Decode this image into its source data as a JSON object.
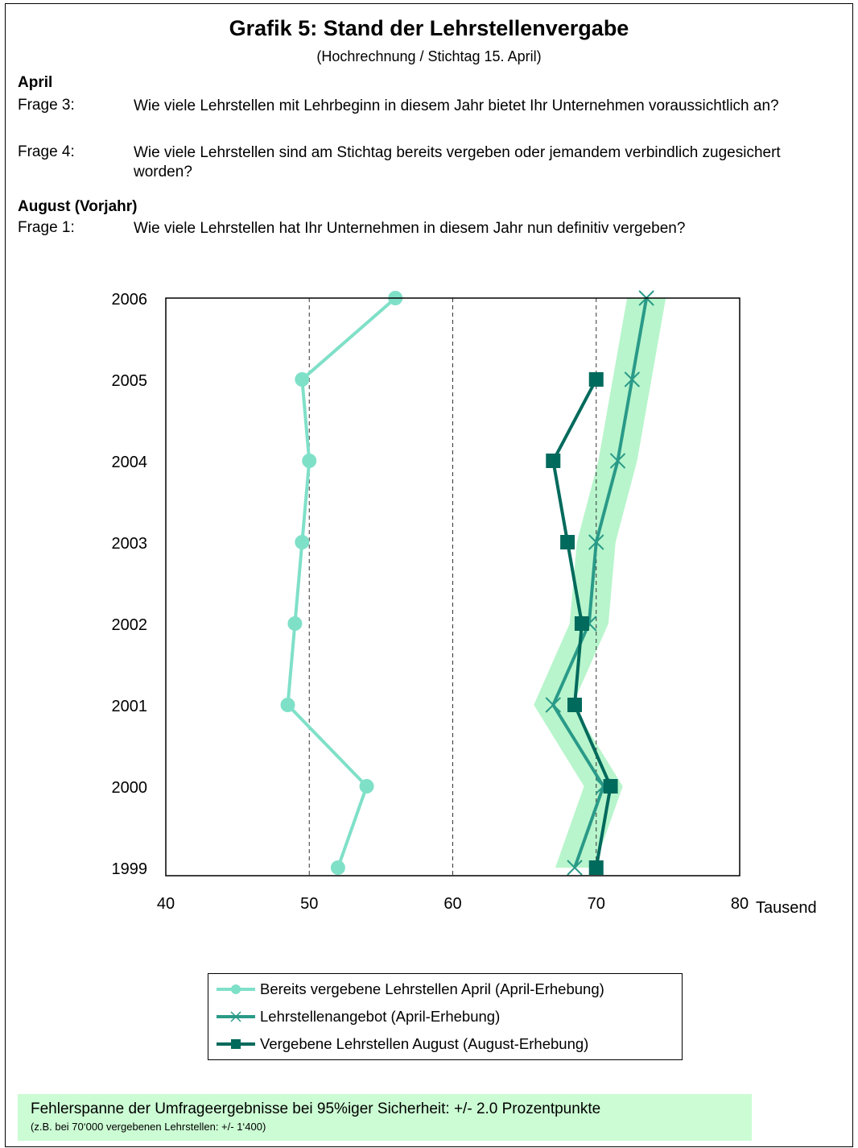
{
  "title": "Grafik 5: Stand der Lehrstellenvergabe",
  "subtitle": "(Hochrechnung / Stichtag 15. April)",
  "questions": {
    "april_header": "April",
    "q3_label": "Frage 3:",
    "q3_text": "Wie viele Lehrstellen mit Lehrbeginn in diesem Jahr bietet Ihr Unternehmen voraussichtlich an?",
    "q4_label": "Frage 4:",
    "q4_text": "Wie viele Lehrstellen sind am Stichtag bereits vergeben oder jemandem verbindlich zugesichert worden?",
    "august_header": "August (Vorjahr)",
    "q1_label": "Frage 1:",
    "q1_text": "Wie viele Lehrstellen hat Ihr Unternehmen in diesem Jahr nun definitiv vergeben?"
  },
  "chart_data": {
    "type": "line",
    "orientation": "horizontal-values",
    "xlabel": "Tausend",
    "xlim": [
      40,
      80
    ],
    "xticks": [
      40,
      50,
      60,
      70,
      80
    ],
    "years": [
      "1999",
      "2000",
      "2001",
      "2002",
      "2003",
      "2004",
      "2005",
      "2006"
    ],
    "series": [
      {
        "name": "Bereits vergebene Lehrstellen April (April-Erhebung)",
        "marker": "circle",
        "color": "#7fe0c8",
        "values": [
          52.0,
          54.0,
          48.5,
          49.0,
          49.5,
          50.0,
          49.5,
          56.0
        ]
      },
      {
        "name": "Lehrstellenangebot (April-Erhebung)",
        "marker": "x",
        "color": "#2a9a88",
        "values": [
          68.5,
          70.5,
          67.0,
          69.5,
          70.0,
          71.5,
          72.5,
          73.5
        ]
      },
      {
        "name": "Vergebene Lehrstellen August (August-Erhebung)",
        "marker": "square",
        "color": "#006a5c",
        "values": [
          70.0,
          71.0,
          68.5,
          69.0,
          68.0,
          67.0,
          70.0,
          null
        ]
      }
    ],
    "error_band": {
      "about_series": "Lehrstellenangebot (April-Erhebung)",
      "color": "#b8f5cc",
      "margin_percent": 2.0
    },
    "grid": "vertical-dashed"
  },
  "note": {
    "main": "Fehlerspanne der Umfrageergebnisse bei 95%iger Sicherheit: +/- 2.0 Prozentpunkte",
    "sub": "(z.B. bei 70‘000 vergebenen Lehrstellen: +/- 1‘400)"
  }
}
